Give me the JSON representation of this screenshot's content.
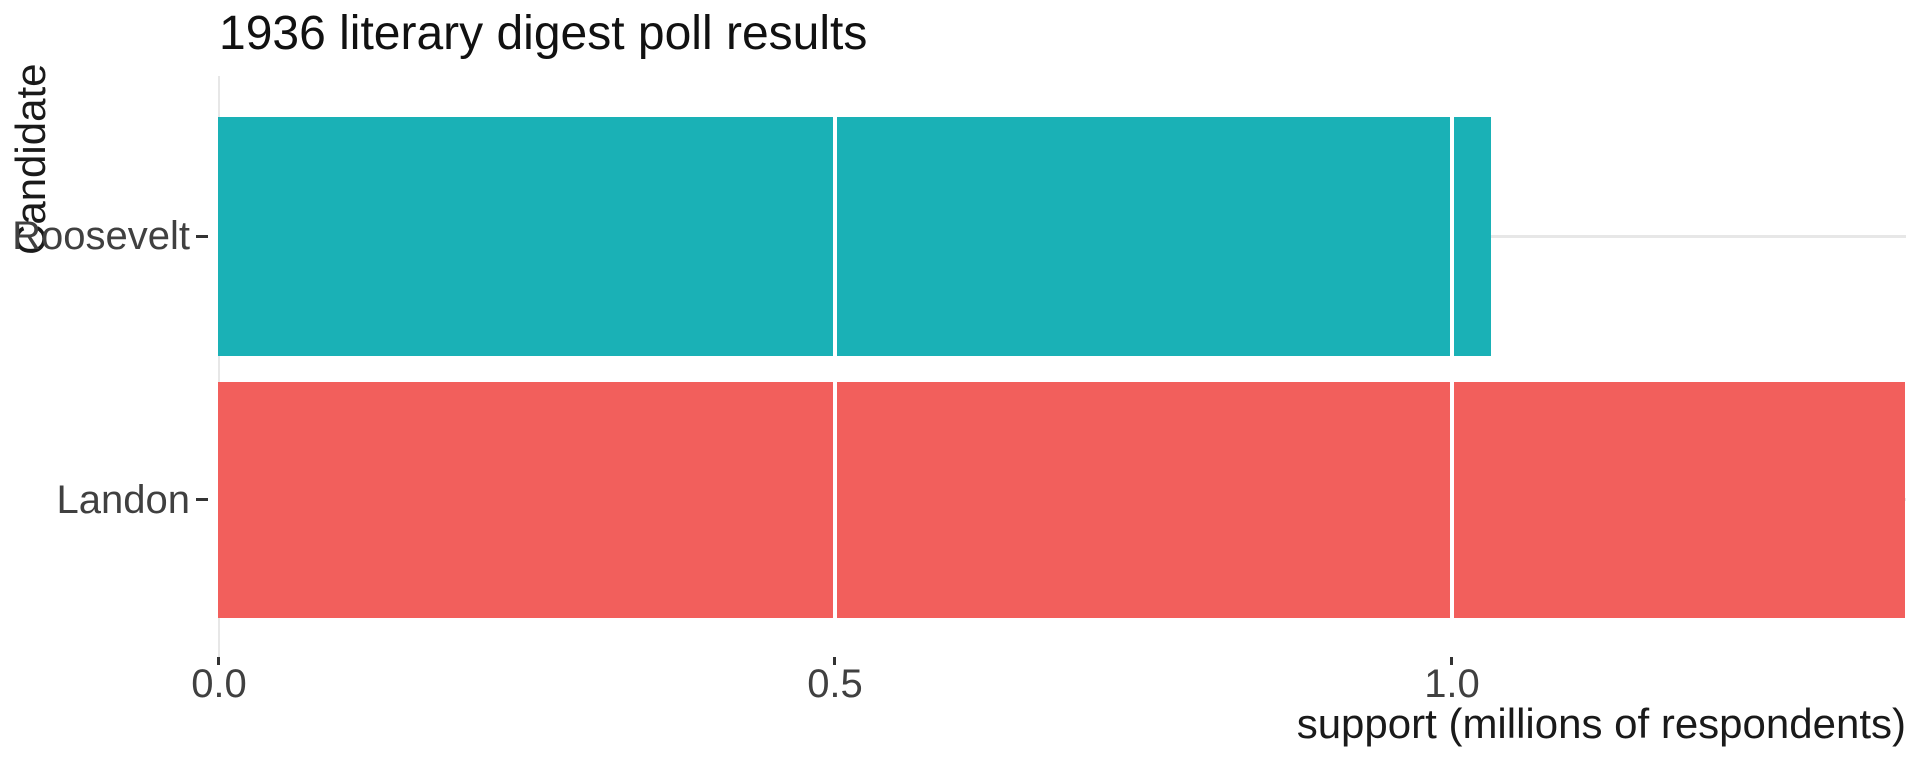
{
  "title": "1936 literary digest poll results",
  "chart_data": {
    "type": "bar",
    "orientation": "horizontal",
    "title": "1936 literary digest poll results",
    "xlabel": "support (millions of respondents)",
    "ylabel": "Candidate",
    "categories": [
      "Roosevelt",
      "Landon"
    ],
    "values": [
      1.03,
      1.37
    ],
    "x_ticks": [
      0.0,
      0.5,
      1.0
    ],
    "x_tick_labels": [
      "0.0",
      "0.5",
      "1.0"
    ],
    "xlim": [
      0,
      1.37
    ],
    "legend": "none",
    "grid": "major gridlines only; vertical gridlines drawn in white over bars, light grey elsewhere",
    "bar_colors": [
      "#1ab1b6",
      "#f25f5c"
    ],
    "colors": {
      "roosevelt_bar": "#1ab1b6",
      "landon_bar": "#f25f5c",
      "gridline": "#e7e7e7",
      "tick_mark": "#333333",
      "tick_label_text": "#404040",
      "axis_title_text": "#1a1a1a",
      "title_text": "#111111",
      "background": "#ffffff"
    }
  }
}
